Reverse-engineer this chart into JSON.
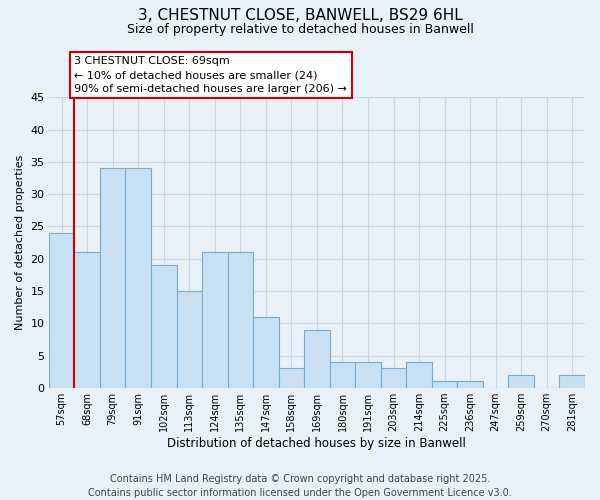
{
  "title": "3, CHESTNUT CLOSE, BANWELL, BS29 6HL",
  "subtitle": "Size of property relative to detached houses in Banwell",
  "xlabel": "Distribution of detached houses by size in Banwell",
  "ylabel": "Number of detached properties",
  "bar_labels": [
    "57sqm",
    "68sqm",
    "79sqm",
    "91sqm",
    "102sqm",
    "113sqm",
    "124sqm",
    "135sqm",
    "147sqm",
    "158sqm",
    "169sqm",
    "180sqm",
    "191sqm",
    "203sqm",
    "214sqm",
    "225sqm",
    "236sqm",
    "247sqm",
    "259sqm",
    "270sqm",
    "281sqm"
  ],
  "bar_values": [
    24,
    21,
    34,
    34,
    19,
    15,
    21,
    21,
    11,
    3,
    9,
    4,
    4,
    3,
    4,
    1,
    1,
    0,
    2,
    0,
    2
  ],
  "bar_color": "#c9dff2",
  "bar_edge_color": "#7aabcf",
  "vline_x": 0.5,
  "vline_color": "#cc0000",
  "annotation_line1": "3 CHESTNUT CLOSE: 69sqm",
  "annotation_line2": "← 10% of detached houses are smaller (24)",
  "annotation_line3": "90% of semi-detached houses are larger (206) →",
  "annotation_box_color": "#ffffff",
  "annotation_box_edge": "#cc0000",
  "ylim": [
    0,
    45
  ],
  "yticks": [
    0,
    5,
    10,
    15,
    20,
    25,
    30,
    35,
    40,
    45
  ],
  "footer_line1": "Contains HM Land Registry data © Crown copyright and database right 2025.",
  "footer_line2": "Contains public sector information licensed under the Open Government Licence v3.0.",
  "bg_color": "#e8f0f8",
  "plot_bg_color": "#e8f0f8",
  "grid_color": "#c8d8e8",
  "title_fontsize": 11,
  "subtitle_fontsize": 9,
  "footer_fontsize": 7,
  "annotation_fontsize": 8,
  "ylabel_fontsize": 8,
  "xlabel_fontsize": 8.5
}
